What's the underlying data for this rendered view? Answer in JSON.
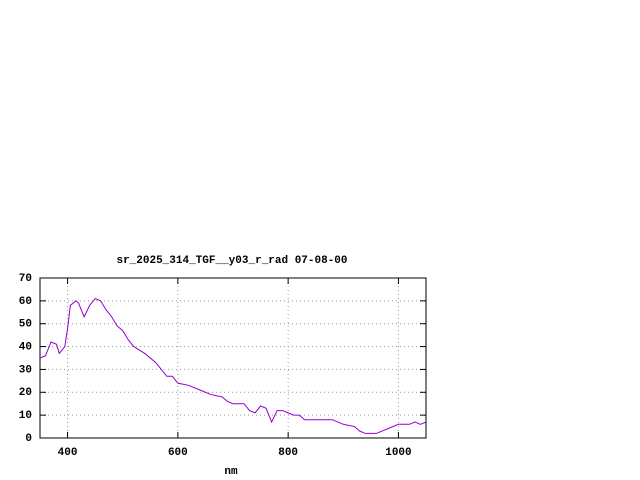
{
  "chart_data": {
    "type": "line",
    "title": "sr_2025_314_TGF__y03_r_rad 07-08-00",
    "xlabel": "nm",
    "x": [
      350,
      360,
      370,
      380,
      385,
      395,
      400,
      405,
      415,
      420,
      430,
      440,
      450,
      460,
      470,
      480,
      490,
      500,
      510,
      520,
      540,
      560,
      580,
      590,
      600,
      620,
      640,
      660,
      680,
      690,
      700,
      710,
      720,
      730,
      740,
      750,
      760,
      770,
      780,
      790,
      800,
      810,
      820,
      830,
      840,
      860,
      880,
      900,
      920,
      930,
      940,
      960,
      980,
      1000,
      1020,
      1030,
      1040,
      1050
    ],
    "values": [
      35,
      36,
      42,
      41,
      37,
      40,
      48,
      58,
      60,
      59,
      53,
      58,
      61,
      60,
      56,
      53,
      49,
      47,
      43,
      40,
      37,
      33,
      27,
      27,
      24,
      23,
      21,
      19,
      18,
      16,
      15,
      15,
      15,
      12,
      11,
      14,
      13,
      7,
      12,
      12,
      11,
      10,
      10,
      8,
      8,
      8,
      8,
      6,
      5,
      3,
      2,
      2,
      4,
      6,
      6,
      7,
      6,
      7
    ],
    "color": "#9400d3",
    "xlim": [
      350,
      1050
    ],
    "xticks": [
      400,
      600,
      800,
      1000
    ],
    "ylim": [
      0,
      70
    ],
    "yticks": [
      0,
      10,
      20,
      30,
      40,
      50,
      60,
      70
    ],
    "grid": true
  }
}
